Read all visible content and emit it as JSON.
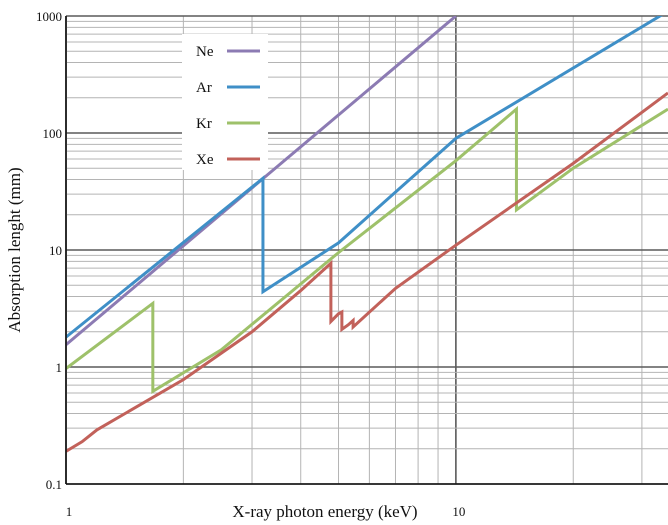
{
  "chart_data": {
    "type": "line",
    "title": "",
    "xlabel": "X-ray photon energy (keV)",
    "ylabel": "Absorption lenght (mm)",
    "xscale": "log",
    "yscale": "log",
    "xlim": [
      1,
      35
    ],
    "ylim": [
      0.1,
      1000
    ],
    "x_ticks": [
      {
        "value": 1,
        "label": "1"
      },
      {
        "value": 10,
        "label": "10"
      }
    ],
    "y_ticks": [
      {
        "value": 0.1,
        "label": "0.1"
      },
      {
        "value": 1,
        "label": "1"
      },
      {
        "value": 10,
        "label": "10"
      },
      {
        "value": 100,
        "label": "100"
      },
      {
        "value": 1000,
        "label": "1000"
      }
    ],
    "grid": true,
    "legend_position": "top-left",
    "series": [
      {
        "name": "Ne",
        "color": "#8c7bb3",
        "points": [
          [
            1,
            1.55
          ],
          [
            10,
            1000
          ]
        ]
      },
      {
        "name": "Ar",
        "color": "#3f8fc7",
        "points": [
          [
            1,
            1.8
          ],
          [
            3.2,
            41
          ],
          [
            3.2,
            4.4
          ],
          [
            5,
            11.5
          ],
          [
            10,
            90
          ],
          [
            35,
            1100
          ]
        ]
      },
      {
        "name": "Kr",
        "color": "#9ec16a",
        "points": [
          [
            1,
            0.97
          ],
          [
            1.67,
            3.5
          ],
          [
            1.67,
            0.62
          ],
          [
            2.5,
            1.4
          ],
          [
            5,
            9.5
          ],
          [
            10,
            58
          ],
          [
            14.3,
            160
          ],
          [
            14.3,
            22
          ],
          [
            20,
            50
          ],
          [
            35,
            160
          ]
        ]
      },
      {
        "name": "Xe",
        "color": "#c2615a",
        "points": [
          [
            1,
            0.19
          ],
          [
            1.1,
            0.23
          ],
          [
            1.2,
            0.29
          ],
          [
            2,
            0.78
          ],
          [
            3,
            2.0
          ],
          [
            4,
            4.5
          ],
          [
            4.78,
            7.7
          ],
          [
            4.78,
            2.45
          ],
          [
            5.0,
            2.85
          ],
          [
            5.1,
            2.95
          ],
          [
            5.1,
            2.1
          ],
          [
            5.3,
            2.3
          ],
          [
            5.45,
            2.5
          ],
          [
            5.45,
            2.2
          ],
          [
            7,
            4.7
          ],
          [
            10,
            11
          ],
          [
            20,
            55
          ],
          [
            35,
            220
          ]
        ]
      }
    ]
  }
}
